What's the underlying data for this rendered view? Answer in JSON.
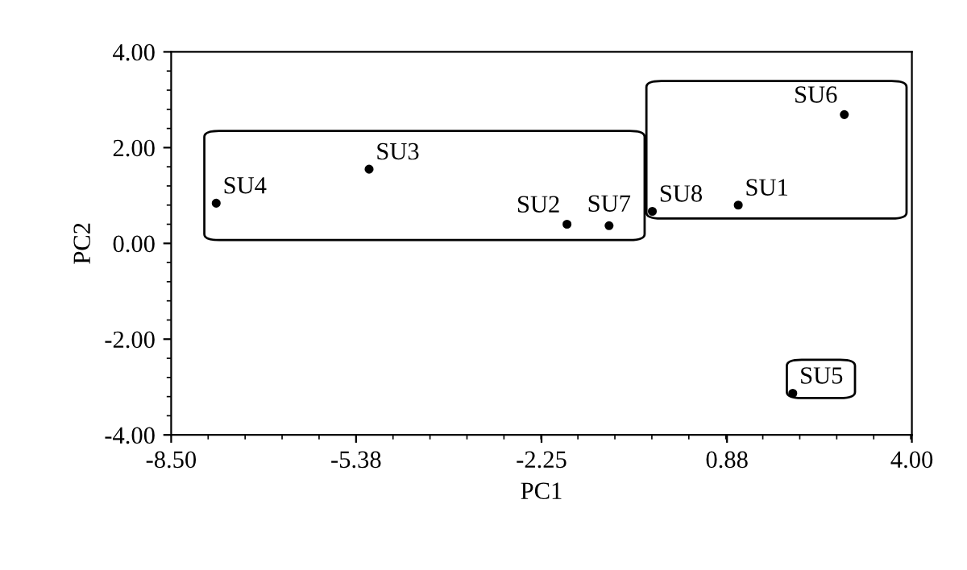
{
  "chart_data": {
    "type": "scatter",
    "xlabel": "PC1",
    "ylabel": "PC2",
    "xlim": [
      -8.5,
      4.0
    ],
    "ylim": [
      -4.0,
      4.0
    ],
    "xticks": [
      {
        "value": -8.5,
        "label": "-8.50"
      },
      {
        "value": -5.38,
        "label": "-5.38"
      },
      {
        "value": -2.25,
        "label": "-2.25"
      },
      {
        "value": 0.88,
        "label": "0.88"
      },
      {
        "value": 4.0,
        "label": "4.00"
      }
    ],
    "yticks": [
      {
        "value": 4.0,
        "label": "4.00"
      },
      {
        "value": 2.0,
        "label": "2.00"
      },
      {
        "value": 0.0,
        "label": "0.00"
      },
      {
        "value": -2.0,
        "label": "-2.00"
      },
      {
        "value": -4.0,
        "label": "-4.00"
      }
    ],
    "x": [
      1.07,
      -1.82,
      -5.16,
      -7.74,
      1.99,
      2.86,
      -1.11,
      -0.38
    ],
    "values": [
      0.8,
      0.4,
      1.55,
      0.84,
      -3.13,
      2.69,
      0.37,
      0.67
    ],
    "value_labels": [
      "SU1",
      "SU2",
      "SU3",
      "SU4",
      "SU5",
      "SU6",
      "SU7",
      "SU8"
    ],
    "color": "#000000",
    "marker": "circle",
    "grid": false,
    "legend": false
  }
}
